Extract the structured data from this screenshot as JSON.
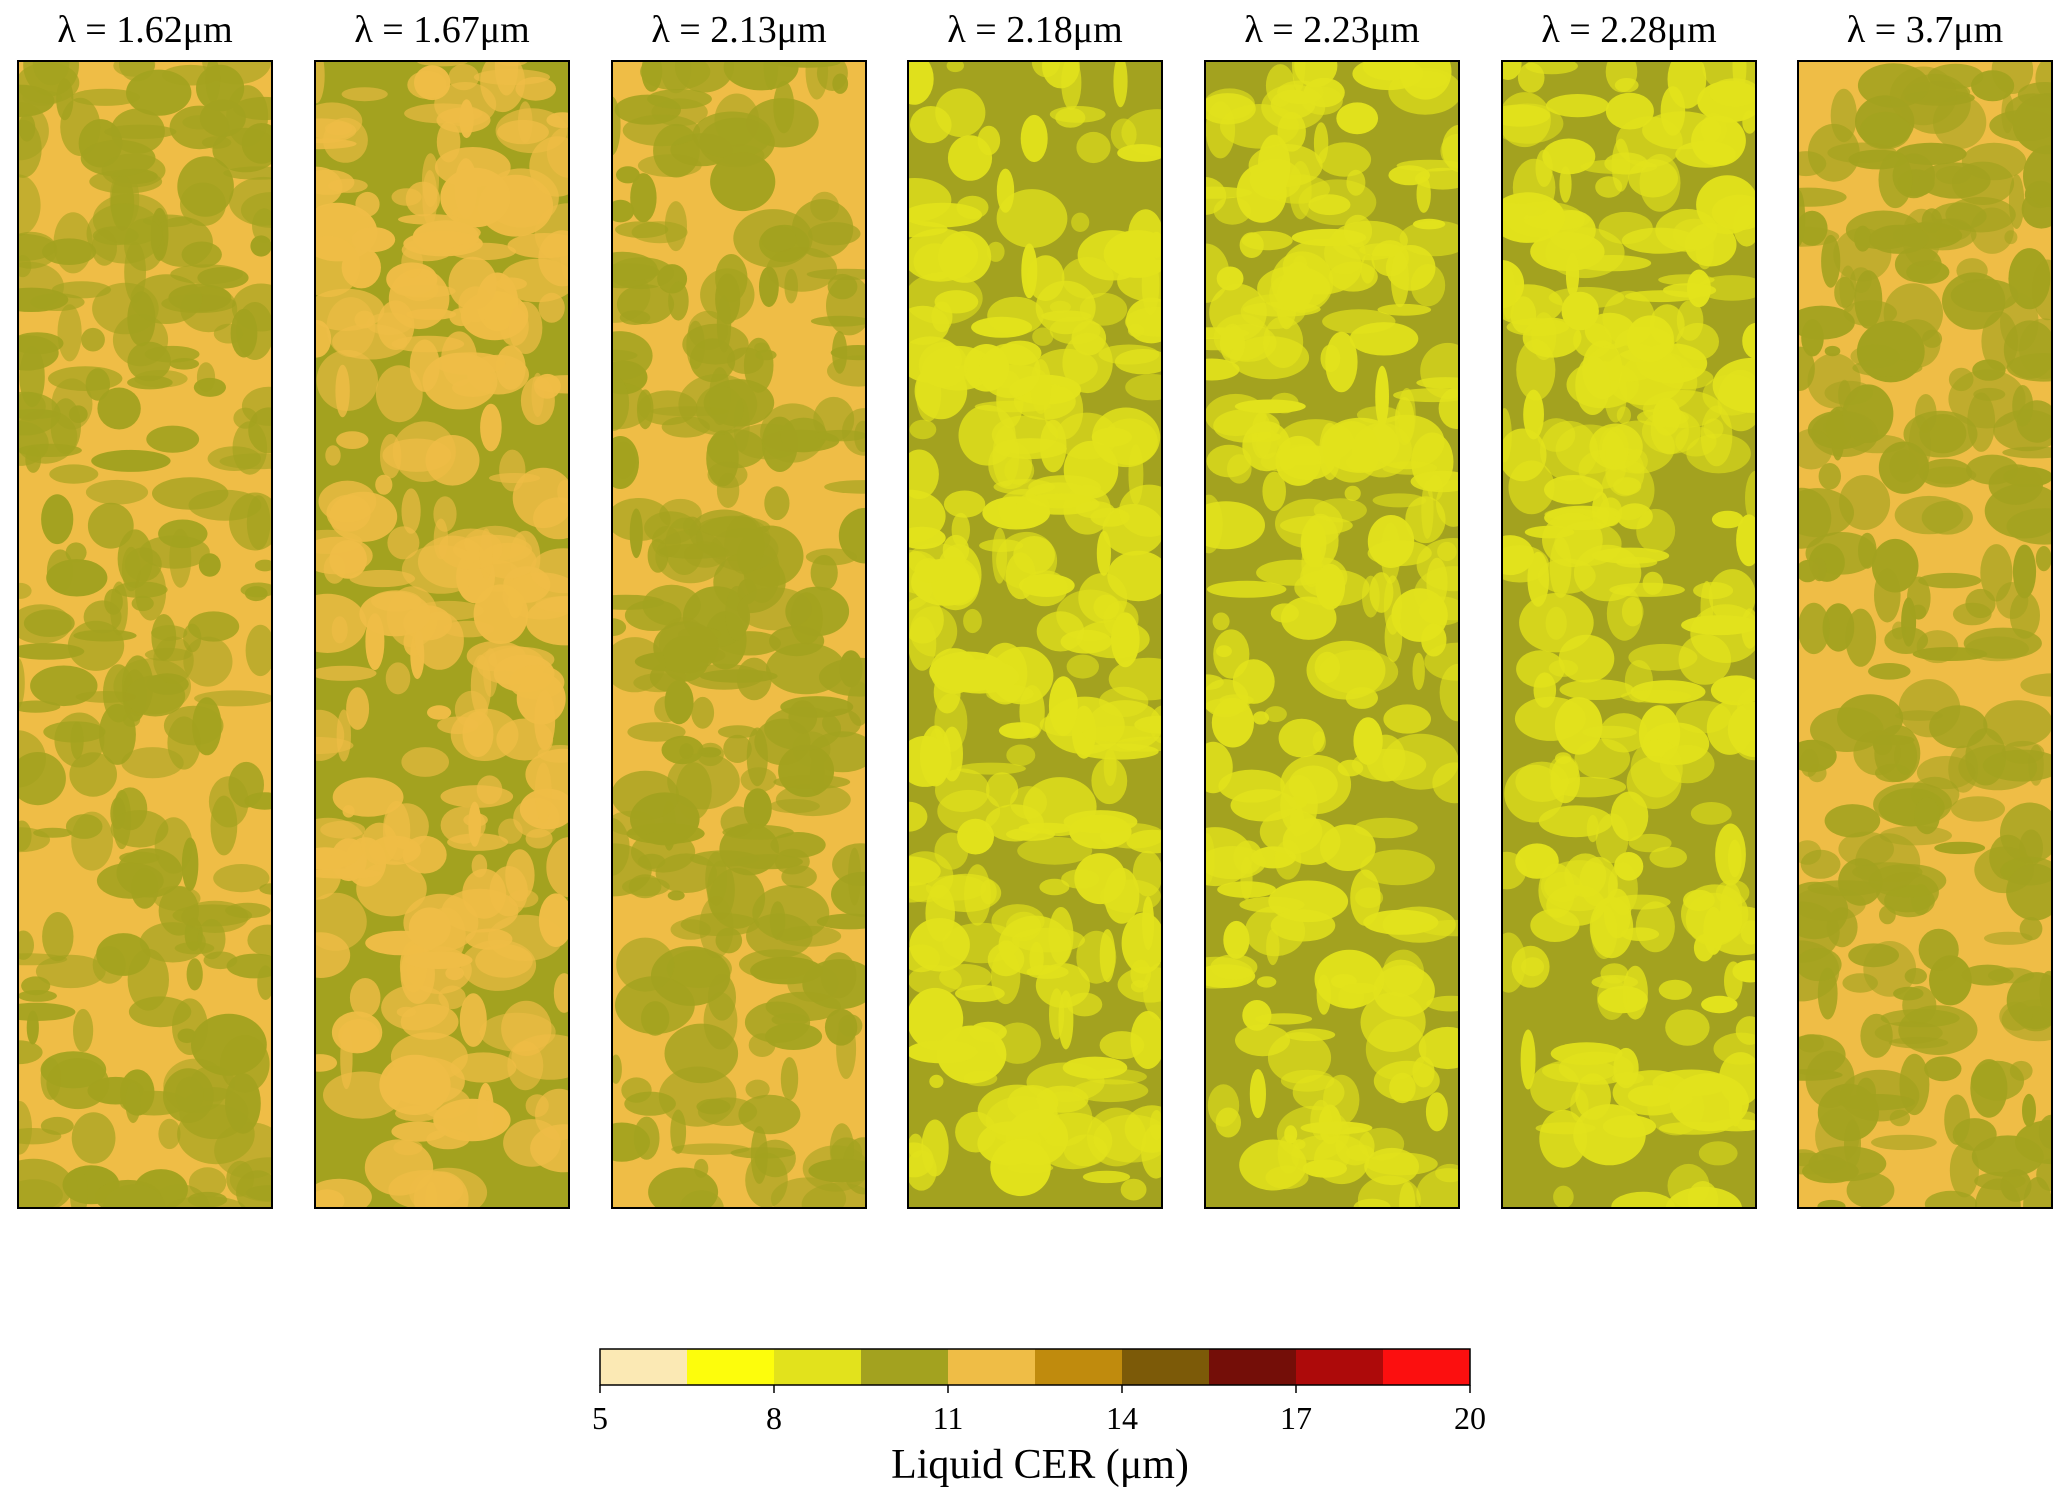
{
  "chart_data": {
    "type": "heatmap",
    "panels": [
      {
        "title": "λ = 1.62μm",
        "dominant_class": "11–12.5",
        "secondary_class": "9.5–11"
      },
      {
        "title": "λ = 1.67μm",
        "dominant_class": "9.5–11",
        "secondary_class": "11–12.5"
      },
      {
        "title": "λ = 2.13μm",
        "dominant_class": "11–12.5",
        "secondary_class": "9.5–11"
      },
      {
        "title": "λ = 2.18μm",
        "dominant_class": "9.5–11",
        "secondary_class": "8–9.5"
      },
      {
        "title": "λ = 2.23μm",
        "dominant_class": "9.5–11",
        "secondary_class": "8–9.5"
      },
      {
        "title": "λ = 2.28μm",
        "dominant_class": "9.5–11",
        "secondary_class": "8–9.5"
      },
      {
        "title": "λ = 3.7μm",
        "dominant_class": "11–12.5",
        "secondary_class": "9.5–11"
      }
    ],
    "colorbar": {
      "label": "Liquid CER (μm)",
      "range": [
        5,
        20
      ],
      "ticks": [
        "5",
        "8",
        "11",
        "14",
        "17",
        "20"
      ],
      "tick_values": [
        5,
        8,
        11,
        14,
        17,
        20
      ],
      "bins": [
        5,
        6.5,
        8,
        9.5,
        11,
        12.5,
        14,
        15.5,
        17,
        18.5,
        20
      ],
      "colors": [
        "#fbe9b4",
        "#fdfd0c",
        "#e2e21c",
        "#a3a21f",
        "#efbd46",
        "#c08b0d",
        "#7c5a08",
        "#740e08",
        "#ad0a0a",
        "#fc0f0f"
      ]
    }
  }
}
